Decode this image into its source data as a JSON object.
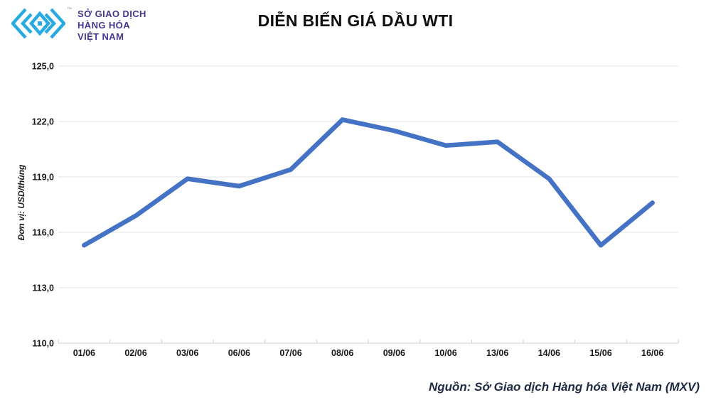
{
  "header": {
    "logo": {
      "line1": "SỞ GIAO DỊCH",
      "line2": "HÀNG HÓA",
      "line3": "VIỆT NAM",
      "tm": "™",
      "mark_color": "#29ABE2",
      "text_color": "#44388C"
    },
    "title": "DIỄN BIẾN GIÁ DẦU WTI"
  },
  "chart_data": {
    "type": "line",
    "title": "DIỄN BIẾN GIÁ DẦU WTI",
    "categories": [
      "01/06",
      "02/06",
      "03/06",
      "06/06",
      "07/06",
      "08/06",
      "09/06",
      "10/06",
      "13/06",
      "14/06",
      "15/06",
      "16/06"
    ],
    "values": [
      115.3,
      116.9,
      118.9,
      118.5,
      119.4,
      122.1,
      121.5,
      120.7,
      120.9,
      118.9,
      115.3,
      117.6
    ],
    "series_name": "Giá dầu WTI",
    "xlabel": "",
    "ylabel": "Đơn vị: USD/thùng",
    "ylim": [
      110,
      125
    ],
    "ytick_step": 3,
    "ytick_labels_top_to_bottom": [
      "125,0",
      "122,0",
      "119,0",
      "116,0",
      "113,0",
      "110,0"
    ],
    "grid": true,
    "legend": "none",
    "line_color": "#4472C4",
    "gridline_color": "#e6e6e6",
    "axis_color": "#cfcfcf"
  },
  "footer": {
    "source": "Nguồn: Sở Giao dịch Hàng hóa Việt Nam (MXV)"
  }
}
